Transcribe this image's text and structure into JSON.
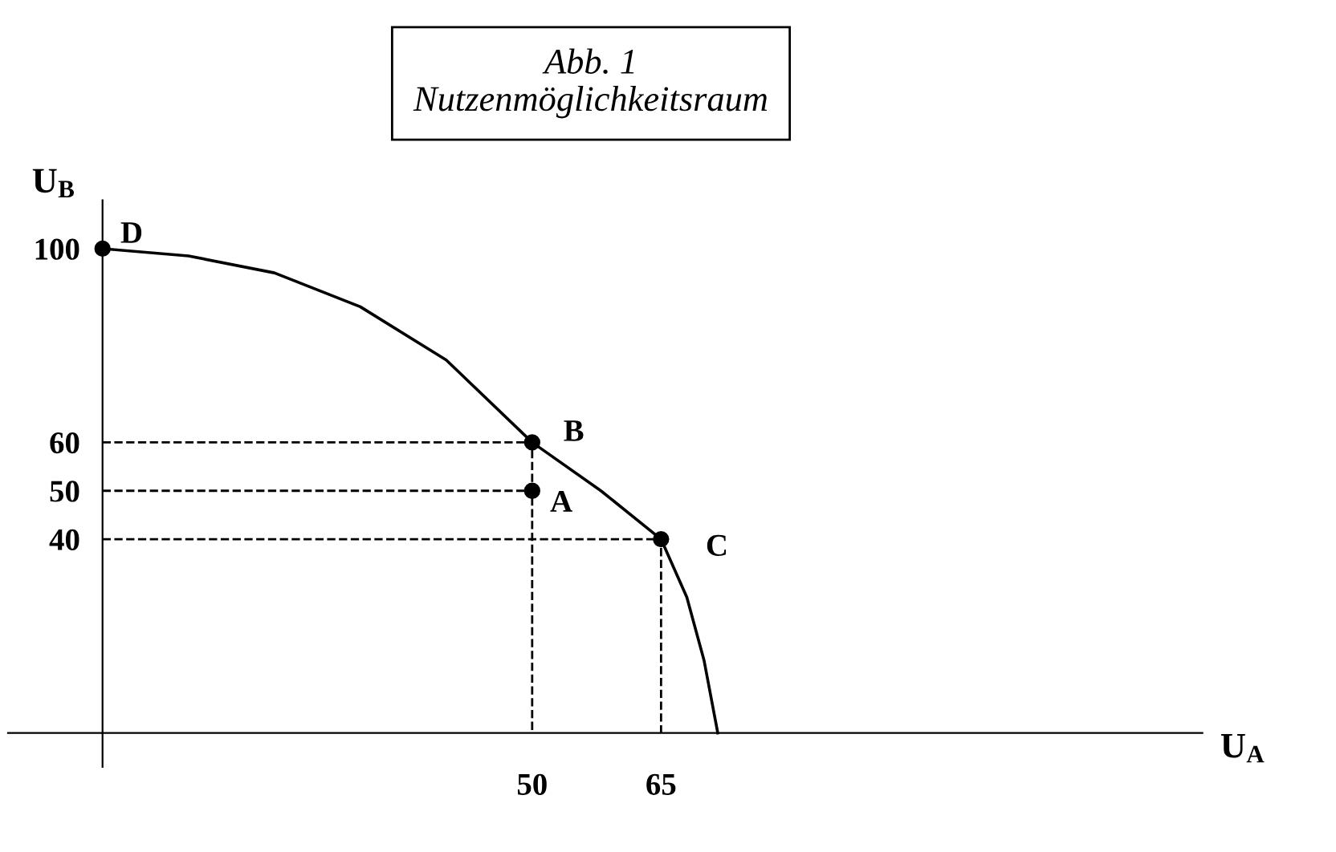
{
  "chart_data": {
    "type": "line",
    "title": "Abb. 1\nNutzenmöglichkeitsraum",
    "xlabel": "U$_{A}$",
    "ylabel": "U$_{B}$",
    "xlim": [
      -11,
      128
    ],
    "ylim": [
      -7,
      110
    ],
    "xticks": [
      50,
      65
    ],
    "yticks": [
      40,
      50,
      60,
      100
    ],
    "grid": false,
    "legend": false,
    "series": [
      {
        "color": "#000000",
        "line_style": "solid",
        "marker": "none",
        "x": [
          0,
          10,
          20,
          30,
          40,
          50,
          58,
          65,
          68,
          70,
          71.6
        ],
        "values": [
          100,
          98.5,
          95,
          88,
          77,
          60,
          50,
          40,
          28,
          15,
          0
        ]
      },
      {
        "color": "#000000",
        "line_style": "dashed",
        "marker": "none",
        "x": [
          0,
          50,
          50
        ],
        "values": [
          60,
          60,
          0
        ]
      },
      {
        "color": "#000000",
        "line_style": "dashed",
        "marker": "none",
        "x": [
          0,
          50
        ],
        "values": [
          50,
          50
        ]
      },
      {
        "color": "#000000",
        "line_style": "dashed",
        "marker": "none",
        "x": [
          0,
          65,
          65
        ],
        "values": [
          40,
          40,
          0
        ]
      },
      {
        "type": "scatter",
        "color": "#000000",
        "marker": "circle",
        "x": [
          0,
          50,
          50,
          65
        ],
        "values": [
          100,
          60,
          50,
          40
        ]
      }
    ],
    "annotations": [
      {
        "text": "D",
        "x": 0,
        "y": 100
      },
      {
        "text": "B",
        "x": 50,
        "y": 60
      },
      {
        "text": "A",
        "x": 50,
        "y": 50
      },
      {
        "text": "C",
        "x": 65,
        "y": 40
      }
    ]
  }
}
